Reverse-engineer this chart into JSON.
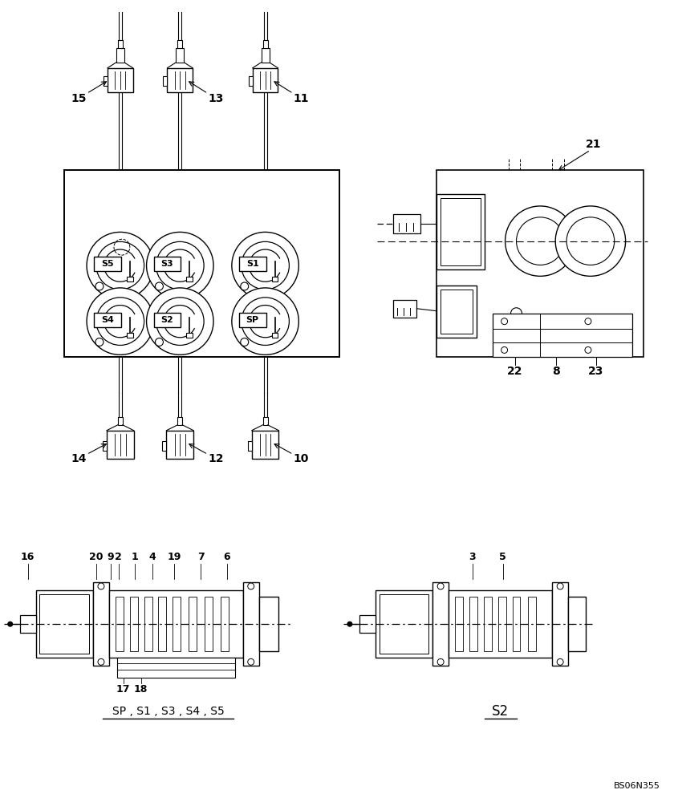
{
  "background_color": "#ffffff",
  "line_color": "#000000",
  "fig_width": 8.4,
  "fig_height": 10.0,
  "labels_top_solenoids": [
    "S5",
    "S3",
    "S1"
  ],
  "labels_bot_solenoids": [
    "S4",
    "S2",
    "SP"
  ],
  "caption_left": "SP , S1 , S3 , S4 , S5",
  "caption_right": "S2",
  "watermark": "BS06N355"
}
